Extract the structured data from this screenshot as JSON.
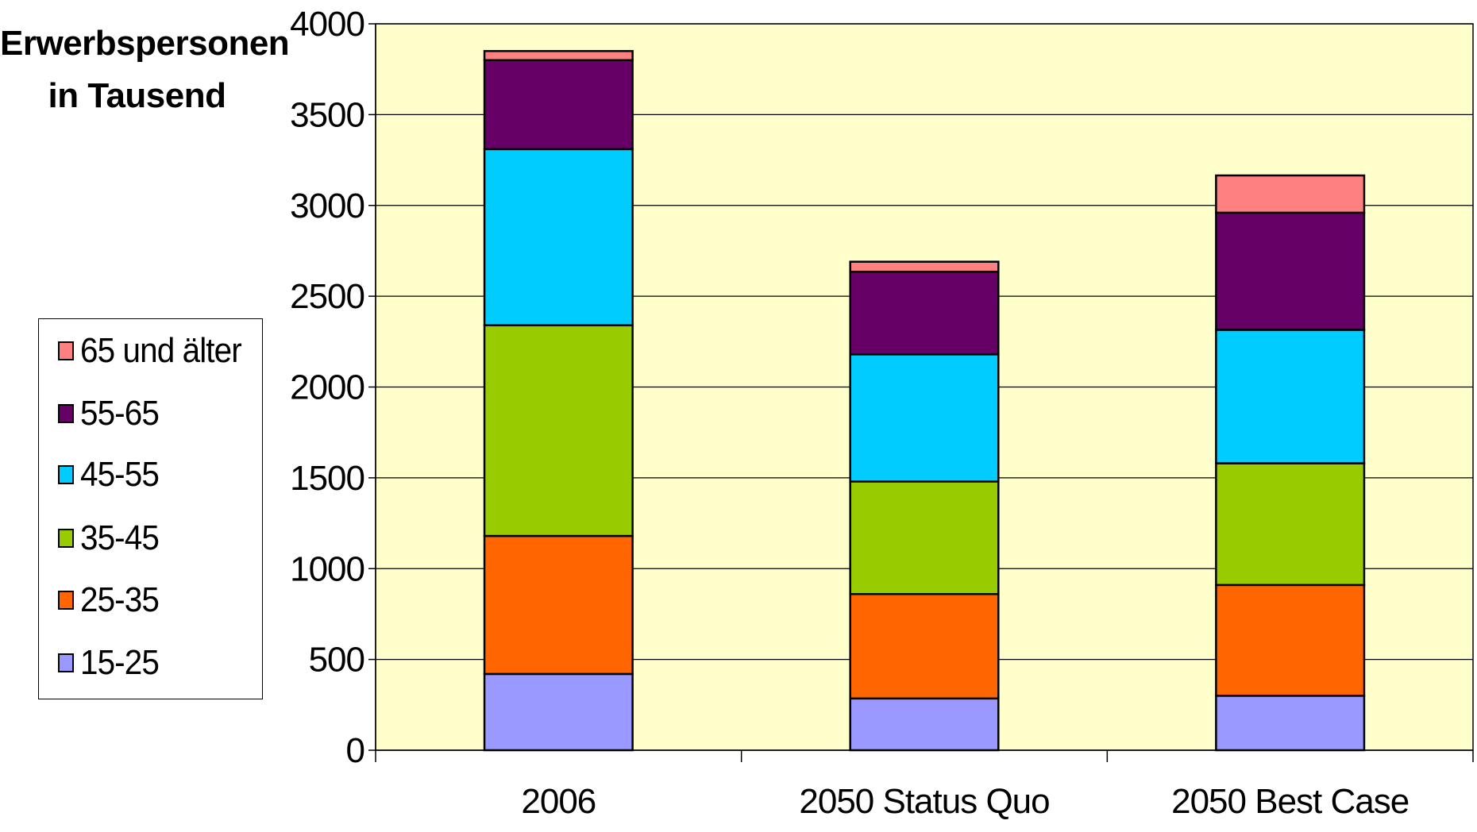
{
  "chart_data": {
    "type": "bar",
    "stacked": true,
    "ylabel": "Erwerbspersonen in Tausend",
    "ylabel_lines": [
      "Erwerbspersonen",
      "in Tausend"
    ],
    "categories": [
      "2006",
      "2050 Status Quo",
      "2050 Best Case"
    ],
    "ylim": [
      0,
      4000
    ],
    "yticks": [
      0,
      500,
      1000,
      1500,
      2000,
      2500,
      3000,
      3500,
      4000
    ],
    "grid": true,
    "legend_position": "left",
    "series": [
      {
        "name": "15-25",
        "color": "#9999ff",
        "values": [
          420,
          285,
          300
        ]
      },
      {
        "name": "25-35",
        "color": "#ff6600",
        "values": [
          760,
          575,
          610
        ]
      },
      {
        "name": "35-45",
        "color": "#99cc00",
        "values": [
          1160,
          620,
          670
        ]
      },
      {
        "name": "45-55",
        "color": "#00ccff",
        "values": [
          970,
          700,
          735
        ]
      },
      {
        "name": "55-65",
        "color": "#660066",
        "values": [
          490,
          455,
          645
        ]
      },
      {
        "name": "65 und älter",
        "color": "#ff8080",
        "values": [
          50,
          55,
          205
        ]
      }
    ],
    "plot_background": "#ffffcc"
  },
  "legend": {
    "items": [
      {
        "label": "65 und älter",
        "color": "#ff8080"
      },
      {
        "label": "55-65",
        "color": "#660066"
      },
      {
        "label": "45-55",
        "color": "#00ccff"
      },
      {
        "label": "35-45",
        "color": "#99cc00"
      },
      {
        "label": "25-35",
        "color": "#ff6600"
      },
      {
        "label": "15-25",
        "color": "#9999ff"
      }
    ]
  }
}
